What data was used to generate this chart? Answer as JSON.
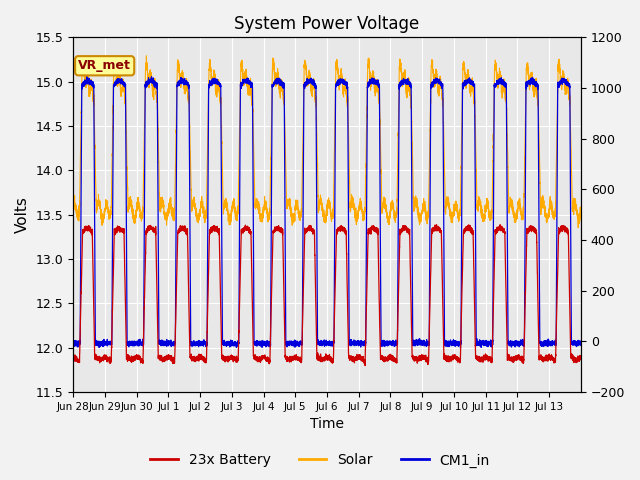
{
  "title": "System Power Voltage",
  "xlabel": "Time",
  "ylabel": "Volts",
  "ylim_left": [
    11.5,
    15.5
  ],
  "ylim_right": [
    -200,
    1200
  ],
  "yticks_left": [
    11.5,
    12.0,
    12.5,
    13.0,
    13.5,
    14.0,
    14.5,
    15.0,
    15.5
  ],
  "yticks_right": [
    -200,
    0,
    200,
    400,
    600,
    800,
    1000,
    1200
  ],
  "xtick_labels": [
    "Jun 28",
    "Jun 29",
    "Jun 30",
    "Jul 1",
    "Jul 2",
    "Jul 3",
    "Jul 4",
    "Jul 5",
    "Jul 6",
    "Jul 7",
    "Jul 8",
    "Jul 9",
    "Jul 10",
    "Jul 11",
    "Jul 12",
    "Jul 13"
  ],
  "colors": {
    "battery": "#cc0000",
    "solar": "#ffaa00",
    "cm1_in": "#0000dd",
    "background": "#e8e8e8",
    "grid": "#ffffff",
    "annotation_bg": "#ffff99",
    "annotation_border": "#cc8800"
  },
  "legend": [
    "23x Battery",
    "Solar",
    "CM1_in"
  ],
  "annotation_text": "VR_met"
}
